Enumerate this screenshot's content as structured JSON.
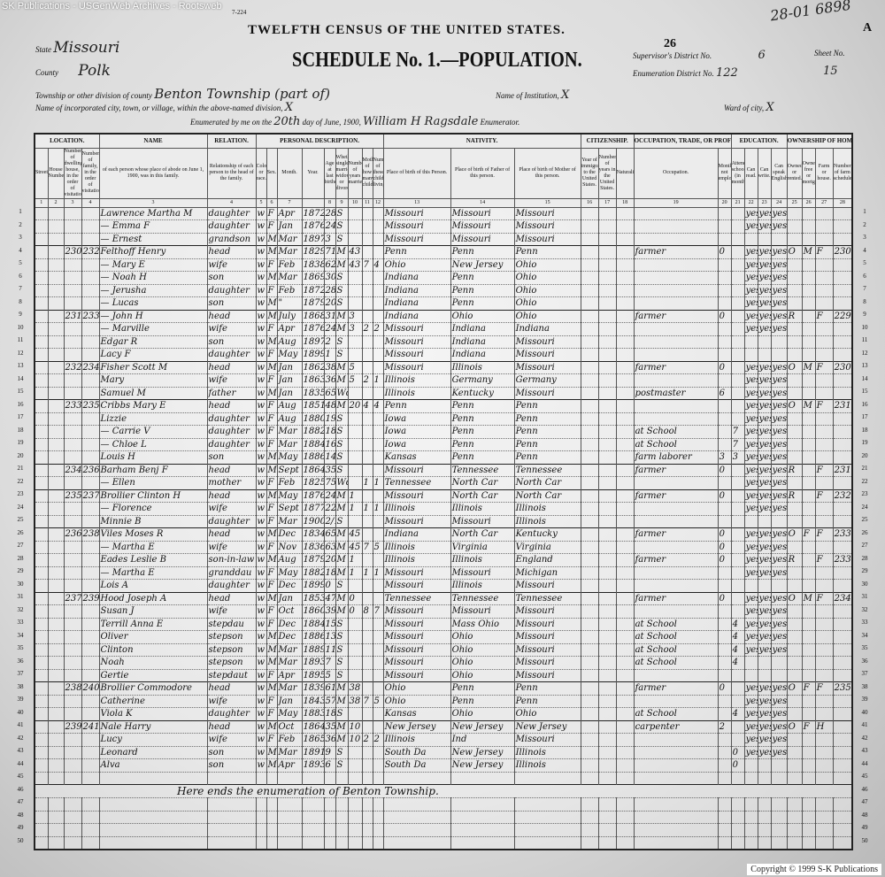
{
  "watermark": "SK Publications - USGenWeb Archives - Rootsweb",
  "form_no": "7-224",
  "title": "TWELFTH CENSUS OF THE UNITED STATES.",
  "schedule": "SCHEDULE No. 1.—POPULATION.",
  "corner_note": "28-01",
  "corner_num": "6898",
  "sheet_letter": "A",
  "page_stamp": "26",
  "header": {
    "state_label": "State",
    "state": "Missouri",
    "county_label": "County",
    "county": "Polk",
    "township_label": "Township or other division of county",
    "township": "Benton Township (part of)",
    "institution_label": "Name of Institution,",
    "institution": "X",
    "city_label": "Name of incorporated city, town, or village, within the above-named division,",
    "city": "X",
    "ward_label": "Ward of city,",
    "ward": "X",
    "supervisor_label": "Supervisor's District No.",
    "supervisor": "6",
    "enum_district_label": "Enumeration District No.",
    "enum_district": "122",
    "sheet_label": "Sheet No.",
    "sheet": "15",
    "enumerated_prefix": "Enumerated by me on the",
    "day": "20th",
    "month_text": "day of June, 1900,",
    "enumerator": "William H Ragsdale",
    "enumerator_label": "Enumerator."
  },
  "groups": [
    "LOCATION.",
    "NAME",
    "RELATION.",
    "PERSONAL DESCRIPTION.",
    "NATIVITY.",
    "CITIZENSHIP.",
    "OCCUPATION, TRADE, OR PROFESSION",
    "EDUCATION.",
    "OWNERSHIP OF HOME."
  ],
  "columns": [
    "Street.",
    "House Number.",
    "Number of dwelling-house, in the order of visitation.",
    "Number of family, in the order of visitation.",
    "of each person whose place of abode on June 1, 1900, was in this family.",
    "Relationship of each person to the head of the family.",
    "Color or race.",
    "Sex.",
    "Month.",
    "Year.",
    "Age at last birthday.",
    "Whether single, married, widowed, or divorced.",
    "Number of years married.",
    "Mother of how many children.",
    "Number of these children living.",
    "Place of birth of this Person.",
    "Place of birth of Father of this person.",
    "Place of birth of Mother of this person.",
    "Year of immigration to the United States.",
    "Number of years in the United States.",
    "Naturalization.",
    "Occupation.",
    "Months not employed.",
    "Attended school (in months).",
    "Can read.",
    "Can write.",
    "Can speak English.",
    "Owned or rented.",
    "Owned free or mortgaged.",
    "Farm or house.",
    "Number of farm schedule."
  ],
  "column_numbers": [
    "1",
    "2",
    "3",
    "4",
    "3",
    "4",
    "5",
    "6",
    "7",
    "",
    "8",
    "9",
    "10",
    "11",
    "12",
    "13",
    "14",
    "15",
    "16",
    "17",
    "18",
    "19",
    "20",
    "21",
    "22",
    "23",
    "24",
    "25",
    "26",
    "27",
    "28"
  ],
  "rows": [
    [
      "",
      "",
      "",
      "",
      "Lawrence Martha M",
      "daughter",
      "w",
      "F",
      "Apr",
      "1872",
      "28",
      "S",
      "",
      "",
      "",
      "Missouri",
      "Missouri",
      "Missouri",
      "",
      "",
      "",
      "",
      "",
      "",
      "yes",
      "yes",
      "yes",
      "",
      "",
      "",
      ""
    ],
    [
      "",
      "",
      "",
      "",
      "— Emma F",
      "daughter",
      "w",
      "F",
      "Jan",
      "1876",
      "24",
      "S",
      "",
      "",
      "",
      "Missouri",
      "Missouri",
      "Missouri",
      "",
      "",
      "",
      "",
      "",
      "",
      "yes",
      "yes",
      "yes",
      "",
      "",
      "",
      ""
    ],
    [
      "",
      "",
      "",
      "",
      "— Ernest",
      "grandson",
      "w",
      "M",
      "Mar",
      "1897",
      "3",
      "S",
      "",
      "",
      "",
      "Missouri",
      "Missouri",
      "Missouri",
      "",
      "",
      "",
      "",
      "",
      "",
      "",
      "",
      "",
      "",
      "",
      "",
      ""
    ],
    [
      "",
      "",
      "230",
      "232",
      "Felthoff Henry",
      "head",
      "w",
      "M",
      "Mar",
      "1829",
      "71",
      "M",
      "43",
      "",
      "",
      "Penn",
      "Penn",
      "Penn",
      "",
      "",
      "",
      "farmer",
      "0",
      "",
      "yes",
      "yes",
      "yes",
      "O",
      "M",
      "F",
      "230"
    ],
    [
      "",
      "",
      "",
      "",
      "— Mary E",
      "wife",
      "w",
      "F",
      "Feb",
      "1838",
      "62",
      "M",
      "43",
      "7",
      "4",
      "Ohio",
      "New Jersey",
      "Ohio",
      "",
      "",
      "",
      "",
      "",
      "",
      "yes",
      "yes",
      "yes",
      "",
      "",
      "",
      ""
    ],
    [
      "",
      "",
      "",
      "",
      "— Noah H",
      "son",
      "w",
      "M",
      "Mar",
      "1869",
      "30",
      "S",
      "",
      "",
      "",
      "Indiana",
      "Penn",
      "Ohio",
      "",
      "",
      "",
      "",
      "",
      "",
      "yes",
      "yes",
      "yes",
      "",
      "",
      "",
      ""
    ],
    [
      "",
      "",
      "",
      "",
      "— Jerusha",
      "daughter",
      "w",
      "F",
      "Feb",
      "1872",
      "28",
      "S",
      "",
      "",
      "",
      "Indiana",
      "Penn",
      "Ohio",
      "",
      "",
      "",
      "",
      "",
      "",
      "yes",
      "yes",
      "yes",
      "",
      "",
      "",
      ""
    ],
    [
      "",
      "",
      "",
      "",
      "— Lucas",
      "son",
      "w",
      "M",
      "\"",
      "1879",
      "20",
      "S",
      "",
      "",
      "",
      "Indiana",
      "Penn",
      "Ohio",
      "",
      "",
      "",
      "",
      "",
      "",
      "yes",
      "yes",
      "yes",
      "",
      "",
      "",
      ""
    ],
    [
      "",
      "",
      "231",
      "233",
      "— John H",
      "head",
      "w",
      "M",
      "July",
      "1868",
      "31",
      "M",
      "3",
      "",
      "",
      "Indiana",
      "Ohio",
      "Ohio",
      "",
      "",
      "",
      "farmer",
      "0",
      "",
      "yes",
      "yes",
      "yes",
      "R",
      "",
      "F",
      "229"
    ],
    [
      "",
      "",
      "",
      "",
      "— Marville",
      "wife",
      "w",
      "F",
      "Apr",
      "1876",
      "24",
      "M",
      "3",
      "2",
      "2",
      "Missouri",
      "Indiana",
      "Indiana",
      "",
      "",
      "",
      "",
      "",
      "",
      "yes",
      "yes",
      "yes",
      "",
      "",
      "",
      ""
    ],
    [
      "",
      "",
      "",
      "",
      "Edgar R",
      "son",
      "w",
      "M",
      "Aug",
      "1897",
      "2",
      "S",
      "",
      "",
      "",
      "Missouri",
      "Indiana",
      "Missouri",
      "",
      "",
      "",
      "",
      "",
      "",
      "",
      "",
      "",
      "",
      "",
      "",
      ""
    ],
    [
      "",
      "",
      "",
      "",
      "Lacy F",
      "daughter",
      "w",
      "F",
      "May",
      "1899",
      "1",
      "S",
      "",
      "",
      "",
      "Missouri",
      "Indiana",
      "Missouri",
      "",
      "",
      "",
      "",
      "",
      "",
      "",
      "",
      "",
      "",
      "",
      "",
      ""
    ],
    [
      "",
      "",
      "232",
      "234",
      "Fisher Scott M",
      "head",
      "w",
      "M",
      "Jan",
      "1862",
      "38",
      "M",
      "5",
      "",
      "",
      "Missouri",
      "Illinois",
      "Missouri",
      "",
      "",
      "",
      "farmer",
      "0",
      "",
      "yes",
      "yes",
      "yes",
      "O",
      "M",
      "F",
      "230"
    ],
    [
      "",
      "",
      "",
      "",
      "Mary",
      "wife",
      "w",
      "F",
      "Jan",
      "1863",
      "36",
      "M",
      "5",
      "2",
      "1",
      "Illinois",
      "Germany",
      "Germany",
      "",
      "",
      "",
      "",
      "",
      "",
      "yes",
      "yes",
      "yes",
      "",
      "",
      "",
      ""
    ],
    [
      "",
      "",
      "",
      "",
      "Samuel M",
      "father",
      "w",
      "M",
      "Jan",
      "1835",
      "65",
      "Wd",
      "",
      "",
      "",
      "Illinois",
      "Kentucky",
      "Missouri",
      "",
      "",
      "",
      "postmaster",
      "6",
      "",
      "yes",
      "yes",
      "yes",
      "",
      "",
      "",
      ""
    ],
    [
      "",
      "",
      "233",
      "235",
      "Cribbs Mary E",
      "head",
      "w",
      "F",
      "Aug",
      "1851",
      "48",
      "M",
      "20",
      "4",
      "4",
      "Penn",
      "Penn",
      "Penn",
      "",
      "",
      "",
      "",
      "",
      "",
      "yes",
      "yes",
      "yes",
      "O",
      "M",
      "F",
      "231"
    ],
    [
      "",
      "",
      "",
      "",
      "Lizzie",
      "daughter",
      "w",
      "F",
      "Aug",
      "1880",
      "19",
      "S",
      "",
      "",
      "",
      "Iowa",
      "Penn",
      "Penn",
      "",
      "",
      "",
      "",
      "",
      "",
      "yes",
      "yes",
      "yes",
      "",
      "",
      "",
      ""
    ],
    [
      "",
      "",
      "",
      "",
      "— Carrie V",
      "daughter",
      "w",
      "F",
      "Mar",
      "1882",
      "18",
      "S",
      "",
      "",
      "",
      "Iowa",
      "Penn",
      "Penn",
      "",
      "",
      "",
      "at School",
      "",
      "7",
      "yes",
      "yes",
      "yes",
      "",
      "",
      "",
      ""
    ],
    [
      "",
      "",
      "",
      "",
      "— Chloe L",
      "daughter",
      "w",
      "F",
      "Mar",
      "1884",
      "16",
      "S",
      "",
      "",
      "",
      "Iowa",
      "Penn",
      "Penn",
      "",
      "",
      "",
      "at School",
      "",
      "7",
      "yes",
      "yes",
      "yes",
      "",
      "",
      "",
      ""
    ],
    [
      "",
      "",
      "",
      "",
      "Louis H",
      "son",
      "w",
      "M",
      "May",
      "1886",
      "14",
      "S",
      "",
      "",
      "",
      "Kansas",
      "Penn",
      "Penn",
      "",
      "",
      "",
      "farm laborer",
      "3",
      "3",
      "yes",
      "yes",
      "yes",
      "",
      "",
      "",
      ""
    ],
    [
      "",
      "",
      "234",
      "236",
      "Barham Benj F",
      "head",
      "w",
      "M",
      "Sept",
      "1864",
      "35",
      "S",
      "",
      "",
      "",
      "Missouri",
      "Tennessee",
      "Tennessee",
      "",
      "",
      "",
      "farmer",
      "0",
      "",
      "yes",
      "yes",
      "yes",
      "R",
      "",
      "F",
      "231"
    ],
    [
      "",
      "",
      "",
      "",
      "— Ellen",
      "mother",
      "w",
      "F",
      "Feb",
      "1825",
      "75",
      "Wd",
      "",
      "1",
      "1",
      "Tennessee",
      "North Car",
      "North Car",
      "",
      "",
      "",
      "",
      "",
      "",
      "yes",
      "yes",
      "yes",
      "",
      "",
      "",
      ""
    ],
    [
      "",
      "",
      "235",
      "237",
      "Brollier Clinton H",
      "head",
      "w",
      "M",
      "May",
      "1876",
      "24",
      "M",
      "1",
      "",
      "",
      "Missouri",
      "North Car",
      "North Car",
      "",
      "",
      "",
      "farmer",
      "0",
      "",
      "yes",
      "yes",
      "yes",
      "R",
      "",
      "F",
      "232"
    ],
    [
      "",
      "",
      "",
      "",
      "— Florence",
      "wife",
      "w",
      "F",
      "Sept",
      "1877",
      "22",
      "M",
      "1",
      "1",
      "1",
      "Illinois",
      "Illinois",
      "Illinois",
      "",
      "",
      "",
      "",
      "",
      "",
      "yes",
      "yes",
      "yes",
      "",
      "",
      "",
      ""
    ],
    [
      "",
      "",
      "",
      "",
      "Minnie B",
      "daughter",
      "w",
      "F",
      "Mar",
      "1900",
      "2/12",
      "S",
      "",
      "",
      "",
      "Missouri",
      "Missouri",
      "Illinois",
      "",
      "",
      "",
      "",
      "",
      "",
      "",
      "",
      "",
      "",
      "",
      "",
      ""
    ],
    [
      "",
      "",
      "236",
      "238",
      "Viles Moses R",
      "head",
      "w",
      "M",
      "Dec",
      "1834",
      "65",
      "M",
      "45",
      "",
      "",
      "Indiana",
      "North Car",
      "Kentucky",
      "",
      "",
      "",
      "farmer",
      "0",
      "",
      "yes",
      "yes",
      "yes",
      "O",
      "F",
      "F",
      "233"
    ],
    [
      "",
      "",
      "",
      "",
      "— Martha E",
      "wife",
      "w",
      "F",
      "Nov",
      "1836",
      "63",
      "M",
      "45",
      "7",
      "5",
      "Illinois",
      "Virginia",
      "Virginia",
      "",
      "",
      "",
      "",
      "0",
      "",
      "yes",
      "yes",
      "yes",
      "",
      "",
      "",
      ""
    ],
    [
      "",
      "",
      "",
      "",
      "Eades Leslie B",
      "son-in-law",
      "w",
      "M",
      "Aug",
      "1879",
      "20",
      "M",
      "1",
      "",
      "",
      "Illinois",
      "Illinois",
      "England",
      "",
      "",
      "",
      "farmer",
      "0",
      "",
      "yes",
      "yes",
      "yes",
      "R",
      "",
      "F",
      "233"
    ],
    [
      "",
      "",
      "",
      "",
      "— Martha E",
      "granddau",
      "w",
      "F",
      "May",
      "1882",
      "18",
      "M",
      "1",
      "1",
      "1",
      "Missouri",
      "Missouri",
      "Michigan",
      "",
      "",
      "",
      "",
      "",
      "",
      "yes",
      "yes",
      "yes",
      "",
      "",
      "",
      ""
    ],
    [
      "",
      "",
      "",
      "",
      "Lois A",
      "daughter",
      "w",
      "F",
      "Dec",
      "1899",
      "0",
      "S",
      "",
      "",
      "",
      "Missouri",
      "Illinois",
      "Missouri",
      "",
      "",
      "",
      "",
      "",
      "",
      "",
      "",
      "",
      "",
      "",
      "",
      ""
    ],
    [
      "",
      "",
      "237",
      "239",
      "Hood Joseph A",
      "head",
      "w",
      "M",
      "Jan",
      "1853",
      "47",
      "M",
      "0",
      "",
      "",
      "Tennessee",
      "Tennessee",
      "Tennessee",
      "",
      "",
      "",
      "farmer",
      "0",
      "",
      "yes",
      "yes",
      "yes",
      "O",
      "M",
      "F",
      "234"
    ],
    [
      "",
      "",
      "",
      "",
      "Susan J",
      "wife",
      "w",
      "F",
      "Oct",
      "1860",
      "39",
      "M",
      "0",
      "8",
      "7",
      "Missouri",
      "Missouri",
      "Missouri",
      "",
      "",
      "",
      "",
      "",
      "",
      "yes",
      "yes",
      "yes",
      "",
      "",
      "",
      ""
    ],
    [
      "",
      "",
      "",
      "",
      "Terrill Anna E",
      "stepdau",
      "w",
      "F",
      "Dec",
      "1884",
      "15",
      "S",
      "",
      "",
      "",
      "Missouri",
      "Mass Ohio",
      "Missouri",
      "",
      "",
      "",
      "at School",
      "",
      "4",
      "yes",
      "yes",
      "yes",
      "",
      "",
      "",
      ""
    ],
    [
      "",
      "",
      "",
      "",
      "Oliver",
      "stepson",
      "w",
      "M",
      "Dec",
      "1886",
      "13",
      "S",
      "",
      "",
      "",
      "Missouri",
      "Ohio",
      "Missouri",
      "",
      "",
      "",
      "at School",
      "",
      "4",
      "yes",
      "yes",
      "yes",
      "",
      "",
      "",
      ""
    ],
    [
      "",
      "",
      "",
      "",
      "Clinton",
      "stepson",
      "w",
      "M",
      "Mar",
      "1889",
      "11",
      "S",
      "",
      "",
      "",
      "Missouri",
      "Ohio",
      "Missouri",
      "",
      "",
      "",
      "at School",
      "",
      "4",
      "yes",
      "yes",
      "yes",
      "",
      "",
      "",
      ""
    ],
    [
      "",
      "",
      "",
      "",
      "Noah",
      "stepson",
      "w",
      "M",
      "Mar",
      "1893",
      "7",
      "S",
      "",
      "",
      "",
      "Missouri",
      "Ohio",
      "Missouri",
      "",
      "",
      "",
      "at School",
      "",
      "4",
      "",
      "",
      "",
      "",
      "",
      "",
      ""
    ],
    [
      "",
      "",
      "",
      "",
      "Gertie",
      "stepdaut",
      "w",
      "F",
      "Apr",
      "1895",
      "5",
      "S",
      "",
      "",
      "",
      "Missouri",
      "Ohio",
      "Missouri",
      "",
      "",
      "",
      "",
      "",
      "",
      "",
      "",
      "",
      "",
      "",
      "",
      ""
    ],
    [
      "",
      "",
      "238",
      "240",
      "Brollier Commodore",
      "head",
      "w",
      "M",
      "Mar",
      "1839",
      "61",
      "M",
      "38",
      "",
      "",
      "Ohio",
      "Penn",
      "Penn",
      "",
      "",
      "",
      "farmer",
      "0",
      "",
      "yes",
      "yes",
      "yes",
      "O",
      "F",
      "F",
      "235"
    ],
    [
      "",
      "",
      "",
      "",
      "Catherine",
      "wife",
      "w",
      "F",
      "Jan",
      "1843",
      "57",
      "M",
      "38",
      "7",
      "5",
      "Ohio",
      "Penn",
      "Penn",
      "",
      "",
      "",
      "",
      "",
      "",
      "yes",
      "yes",
      "yes",
      "",
      "",
      "",
      ""
    ],
    [
      "",
      "",
      "",
      "",
      "Viola K",
      "daughter",
      "w",
      "F",
      "May",
      "1883",
      "18",
      "S",
      "",
      "",
      "",
      "Kansas",
      "Ohio",
      "Ohio",
      "",
      "",
      "",
      "at School",
      "",
      "4",
      "yes",
      "yes",
      "yes",
      "",
      "",
      "",
      ""
    ],
    [
      "",
      "",
      "239",
      "241",
      "Nale Harry",
      "head",
      "w",
      "M",
      "Oct",
      "1864",
      "35",
      "M",
      "10",
      "",
      "",
      "New Jersey",
      "New Jersey",
      "New Jersey",
      "",
      "",
      "",
      "carpenter",
      "2",
      "",
      "yes",
      "yes",
      "yes",
      "O",
      "F",
      "H",
      ""
    ],
    [
      "",
      "",
      "",
      "",
      "Lucy",
      "wife",
      "w",
      "F",
      "Feb",
      "1865",
      "36",
      "M",
      "10",
      "2",
      "2",
      "Illinois",
      "Ind",
      "Missouri",
      "",
      "",
      "",
      "",
      "",
      "",
      "yes",
      "yes",
      "yes",
      "",
      "",
      "",
      ""
    ],
    [
      "",
      "",
      "",
      "",
      "Leonard",
      "son",
      "w",
      "M",
      "Mar",
      "1891",
      "9",
      "S",
      "",
      "",
      "",
      "South Da",
      "New Jersey",
      "Illinois",
      "",
      "",
      "",
      "",
      "",
      "0",
      "yes",
      "yes",
      "yes",
      "",
      "",
      "",
      ""
    ],
    [
      "",
      "",
      "",
      "",
      "Alva",
      "son",
      "w",
      "M",
      "Apr",
      "1893",
      "6",
      "S",
      "",
      "",
      "",
      "South Da",
      "New Jersey",
      "Illinois",
      "",
      "",
      "",
      "",
      "",
      "0",
      "",
      "",
      "",
      "",
      "",
      "",
      ""
    ]
  ],
  "closing_note": "Here ends the enumeration of Benton Township.",
  "total_lines": 50,
  "copyright": "Copyright © 1999 S-K Publications"
}
